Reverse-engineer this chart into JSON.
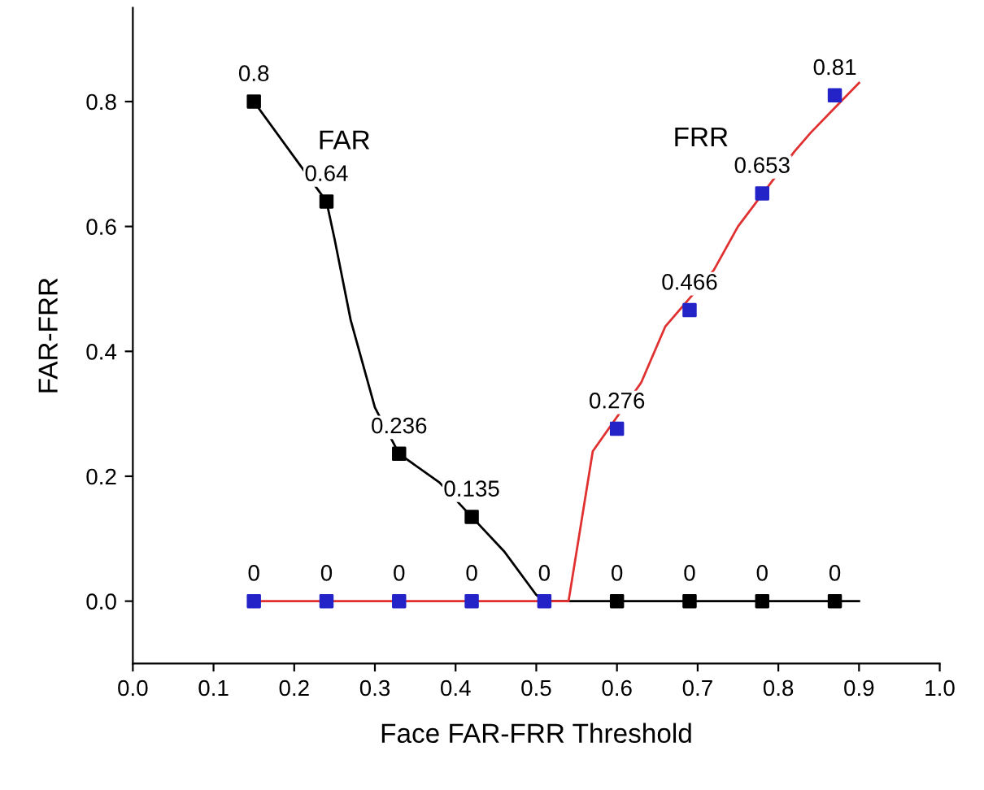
{
  "chart_data": {
    "type": "line",
    "xlabel": "Face FAR-FRR Threshold",
    "ylabel": "FAR-FRR",
    "xlim": [
      0.0,
      1.0
    ],
    "xticks": [
      {
        "value": 0.0,
        "label": "0.0"
      },
      0.1,
      0.2,
      0.3,
      0.4,
      0.5,
      0.6,
      0.7,
      0.8,
      0.9,
      {
        "value": 1.0,
        "label": "1.0"
      }
    ],
    "ylim": [
      -0.1,
      0.95
    ],
    "yticks": [
      {
        "value": 0.0,
        "label": "0.0"
      },
      0.2,
      0.4,
      0.6,
      0.8
    ],
    "grid": false,
    "legend": false,
    "series": [
      {
        "type": "line",
        "name": "FAR",
        "color": "#000000",
        "marker": "none",
        "x": [
          0.15,
          0.24,
          0.25,
          0.27,
          0.3,
          0.33,
          0.38,
          0.42,
          0.46,
          0.5,
          0.51,
          0.9
        ],
        "values": [
          0.8,
          0.64,
          0.58,
          0.45,
          0.31,
          0.236,
          0.19,
          0.135,
          0.08,
          0.01,
          0,
          0
        ]
      },
      {
        "type": "line",
        "name": "FRR",
        "color": "#e03030",
        "marker": "none",
        "x": [
          0.15,
          0.54,
          0.57,
          0.63,
          0.66,
          0.72,
          0.75,
          0.82,
          0.84,
          0.9
        ],
        "values": [
          0,
          0,
          0.24,
          0.35,
          0.44,
          0.53,
          0.6,
          0.72,
          0.75,
          0.83
        ]
      },
      {
        "type": "scatter",
        "color": "#000000",
        "marker": "square",
        "x": [
          0.15,
          0.24,
          0.33,
          0.42,
          0.6,
          0.69,
          0.78,
          0.87
        ],
        "values": [
          0.8,
          0.64,
          0.236,
          0.135,
          0,
          0,
          0,
          0
        ],
        "value_labels": [
          "0.8",
          "0.64",
          "0.236",
          "0.135",
          "0",
          "0",
          "0",
          "0"
        ]
      },
      {
        "type": "scatter",
        "color": "#2323c8",
        "marker": "square",
        "x": [
          0.15,
          0.24,
          0.33,
          0.42,
          0.51,
          0.6,
          0.69,
          0.78,
          0.87
        ],
        "values": [
          0,
          0,
          0,
          0,
          0,
          0.276,
          0.466,
          0.653,
          0.81
        ],
        "value_labels": [
          "0",
          "0",
          "0",
          "0",
          "0",
          "0.276",
          "0.466",
          "0.653",
          "0.81"
        ]
      }
    ]
  }
}
